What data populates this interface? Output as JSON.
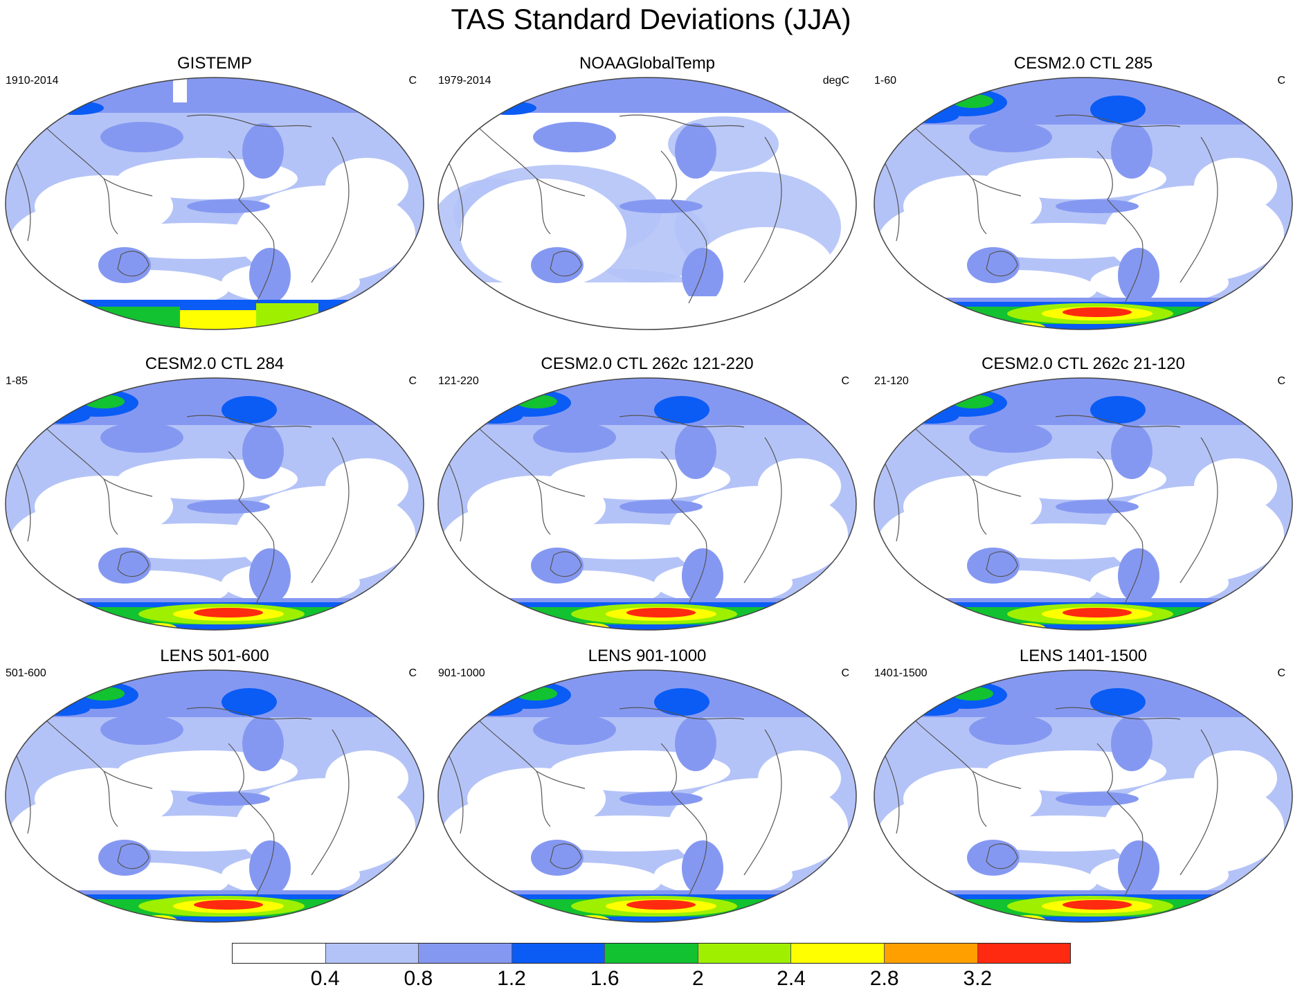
{
  "title": "TAS Standard Deviations (JJA)",
  "colors": [
    "#ffffff",
    "#b4c3f7",
    "#8598f1",
    "#0a5cf5",
    "#12c230",
    "#9ef000",
    "#ffff00",
    "#ffa000",
    "#ff2a10"
  ],
  "colorbar_labels": [
    "0.4",
    "0.8",
    "1.2",
    "1.6",
    "2",
    "2.4",
    "2.8",
    "3.2"
  ],
  "panels": [
    {
      "title": "GISTEMP",
      "left": "1910-2014",
      "right": "C",
      "variant": "obs1"
    },
    {
      "title": "NOAAGlobalTemp",
      "left": "1979-2014",
      "right": "degC",
      "variant": "obs2"
    },
    {
      "title": "CESM2.0 CTL 285",
      "left": "1-60",
      "right": "C",
      "variant": "model"
    },
    {
      "title": "CESM2.0 CTL 284",
      "left": "1-85",
      "right": "C",
      "variant": "model"
    },
    {
      "title": "CESM2.0 CTL 262c 121-220",
      "left": "121-220",
      "right": "C",
      "variant": "model"
    },
    {
      "title": "CESM2.0 CTL 262c 21-120",
      "left": "21-120",
      "right": "C",
      "variant": "model"
    },
    {
      "title": "LENS 501-600",
      "left": "501-600",
      "right": "C",
      "variant": "lens"
    },
    {
      "title": "LENS 901-1000",
      "left": "901-1000",
      "right": "C",
      "variant": "lens"
    },
    {
      "title": "LENS 1401-1500",
      "left": "1401-1500",
      "right": "C",
      "variant": "lens"
    }
  ]
}
